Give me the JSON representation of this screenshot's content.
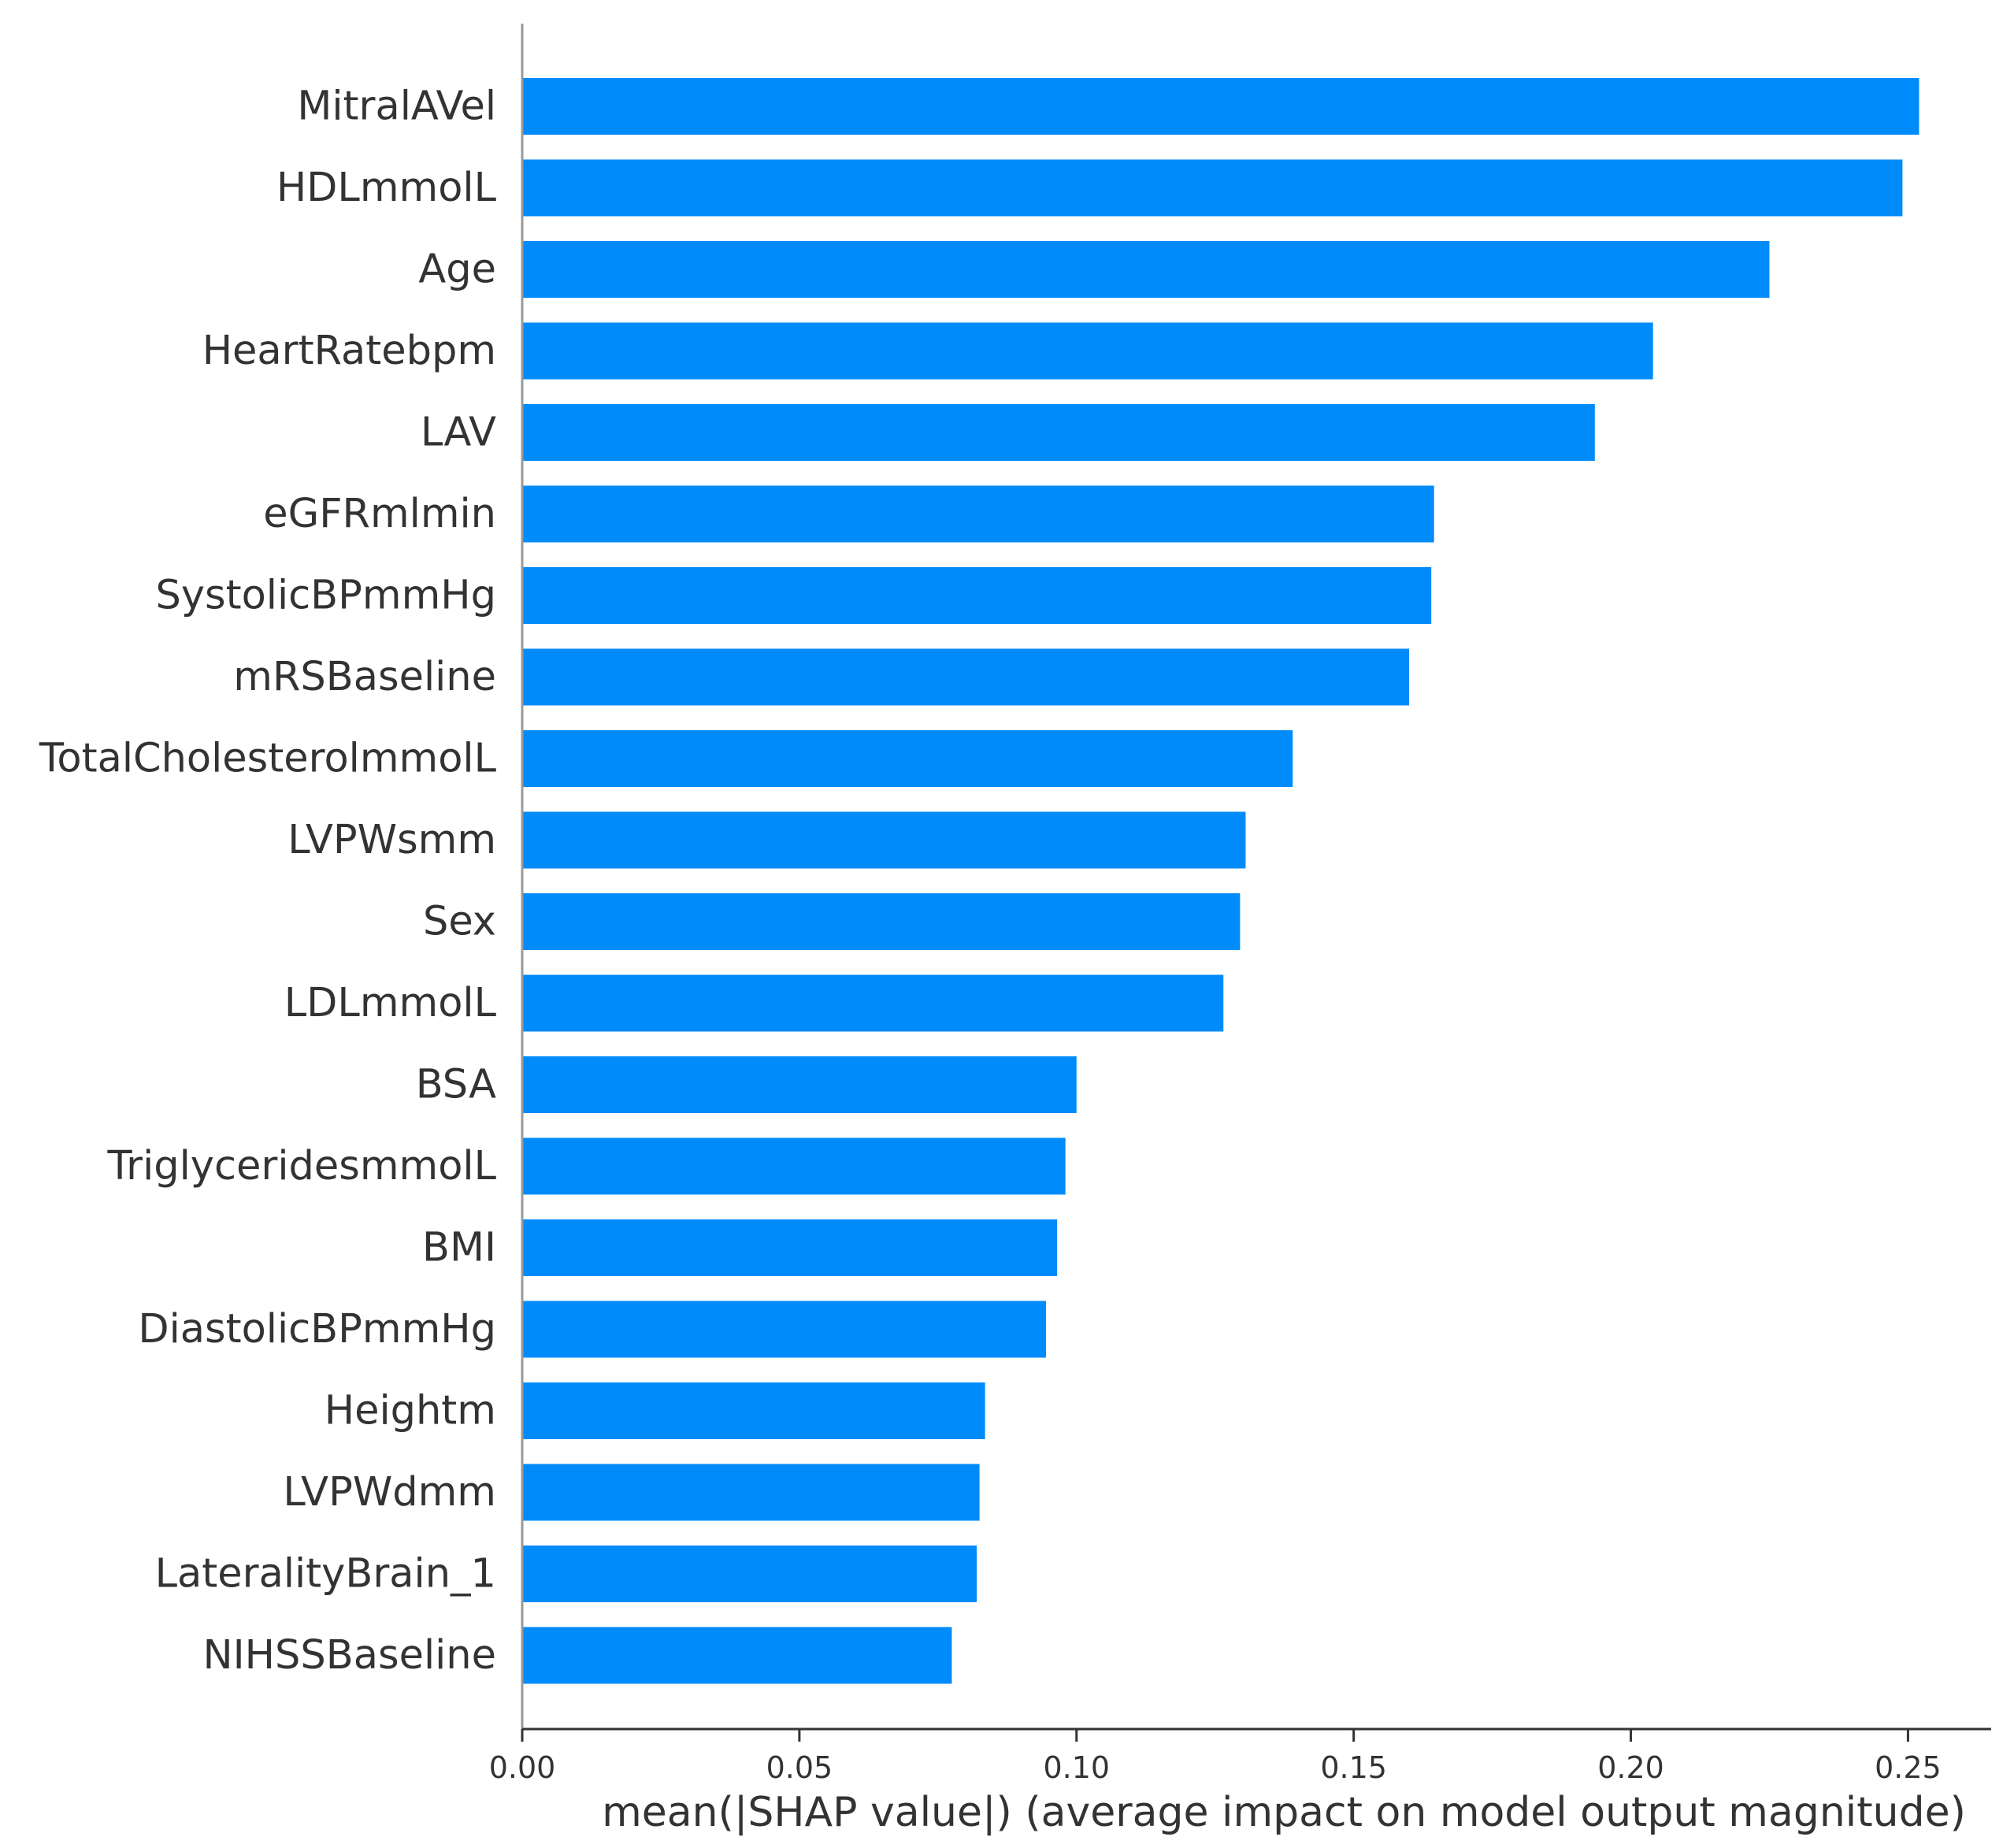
{
  "chart_data": {
    "type": "bar",
    "orientation": "horizontal",
    "title": "",
    "xlabel": "mean(|SHAP value|) (average impact on model output magnitude)",
    "ylabel": "",
    "xlim": [
      0,
      0.265
    ],
    "xticks": [
      0.0,
      0.05,
      0.1,
      0.15,
      0.2,
      0.25
    ],
    "xtick_labels": [
      "0.00",
      "0.05",
      "0.10",
      "0.15",
      "0.20",
      "0.25"
    ],
    "grid": false,
    "bar_color": "#008bfb",
    "categories": [
      "MitralAVel",
      "HDLmmolL",
      "Age",
      "HeartRatebpm",
      "LAV",
      "eGFRmlmin",
      "SystolicBPmmHg",
      "mRSBaseline",
      "TotalCholesterolmmolL",
      "LVPWsmm",
      "Sex",
      "LDLmmolL",
      "BSA",
      "TriglyceridesmmolL",
      "BMI",
      "DiastolicBPmmHg",
      "Heightm",
      "LVPWdmm",
      "LateralityBrain_1",
      "NIHSSBaseline"
    ],
    "values": [
      0.252,
      0.249,
      0.225,
      0.204,
      0.1935,
      0.1645,
      0.164,
      0.16,
      0.139,
      0.1305,
      0.1295,
      0.1265,
      0.1,
      0.098,
      0.0965,
      0.0945,
      0.0835,
      0.0825,
      0.082,
      0.0775
    ]
  }
}
